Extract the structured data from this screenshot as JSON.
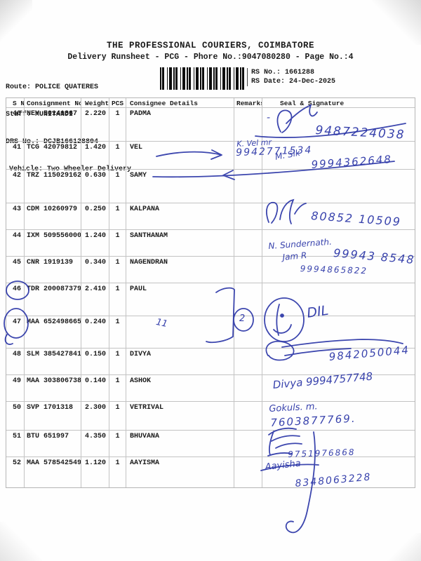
{
  "document": {
    "title": "THE PROFESSIONAL COURIERS, COIMBATORE",
    "subtitle": "Delivery Runsheet - PCG - Phore No.:9047080280 - Page No.:4",
    "route": "Route: POLICE QUATERES",
    "staff": "Staff: MUNIYANDI",
    "drs_no": "DRS No.: DCJB166128804",
    "vehicle": "Vehicle: Two Wheeler Delivery",
    "rs_no": "RS No.: 1661288",
    "rs_date": "RS Date: 24-Dec-2025",
    "barcode": "barcode"
  },
  "table": {
    "columns": [
      "S No",
      "Consignment No",
      "Weight",
      "PCS",
      "Consignee Details",
      "Remarks",
      "Seal & Signature"
    ],
    "rows": [
      {
        "sno": "40",
        "consignment": "NEY 50141867",
        "weight": "2.220",
        "pcs": "1",
        "consignee": "PADMA"
      },
      {
        "sno": "41",
        "consignment": "TCG 42079812",
        "weight": "1.420",
        "pcs": "1",
        "consignee": "VEL"
      },
      {
        "sno": "42",
        "consignment": "TRZ 115029162",
        "weight": "0.630",
        "pcs": "1",
        "consignee": "SAMY"
      },
      {
        "sno": "43",
        "consignment": "CDM 10260979",
        "weight": "0.250",
        "pcs": "1",
        "consignee": "KALPANA"
      },
      {
        "sno": "44",
        "consignment": "IXM 509556000",
        "weight": "1.240",
        "pcs": "1",
        "consignee": "SANTHANAM"
      },
      {
        "sno": "45",
        "consignment": "CNR 1919139",
        "weight": "0.340",
        "pcs": "1",
        "consignee": "NAGENDRAN"
      },
      {
        "sno": "46",
        "consignment": "TDR 200087379",
        "weight": "2.410",
        "pcs": "1",
        "consignee": "PAUL"
      },
      {
        "sno": "47",
        "consignment": "MAA 652498665",
        "weight": "0.240",
        "pcs": "1",
        "consignee": ""
      },
      {
        "sno": "48",
        "consignment": "SLM 385427841",
        "weight": "0.150",
        "pcs": "1",
        "consignee": "DIVYA"
      },
      {
        "sno": "49",
        "consignment": "MAA 303806738",
        "weight": "0.140",
        "pcs": "1",
        "consignee": "ASHOK"
      },
      {
        "sno": "50",
        "consignment": "SVP 1701318",
        "weight": "2.300",
        "pcs": "1",
        "consignee": "VETRIVAL"
      },
      {
        "sno": "51",
        "consignment": "BTU 651997",
        "weight": "4.350",
        "pcs": "1",
        "consignee": "BHUVANA"
      },
      {
        "sno": "52",
        "consignment": "MAA 578542549",
        "weight": "1.120",
        "pcs": "1",
        "consignee": "AAYISMA"
      }
    ]
  },
  "ink": {
    "color": "#2833a6",
    "texts": {
      "r40_dash": "-",
      "r40_phone": "9487224038",
      "r41_line1": "K. Vel mr",
      "r41_phone": "9942771534",
      "r41_line2": "M. Sik",
      "r42_phone": "9994362648",
      "r43_phone": "80852 10509",
      "r44_name": "N. Sundernath.",
      "r44_scrib": "Jam R",
      "r44_phone": "99943 8548",
      "r45_phone": "9994865822",
      "r46_mark": "2",
      "r47_marks": "11",
      "r47_dil": "DIL",
      "r48_phone": "9842050044",
      "r49_line": "Divya 9994757748",
      "r50_name": "Gokuls. m.",
      "r50_phone": "7603877769.",
      "r51_phone": "9751976868",
      "r52_name": "Aayisha",
      "r52_phone": "8348063228"
    }
  }
}
